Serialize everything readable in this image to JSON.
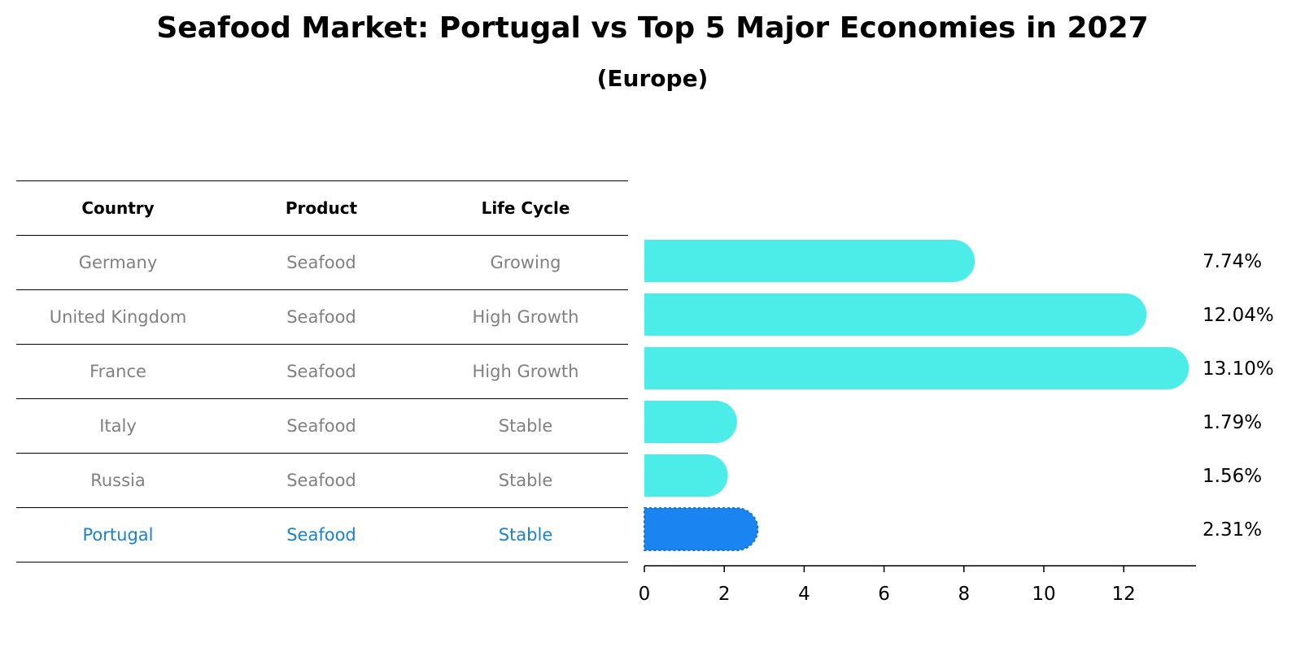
{
  "title": "Seafood Market: Portugal vs Top 5 Major Economies in 2027",
  "subtitle": "(Europe)",
  "table": {
    "headers": [
      "Country",
      "Product",
      "Life Cycle"
    ],
    "rows": [
      [
        "Germany",
        "Seafood",
        "Growing"
      ],
      [
        "United Kingdom",
        "Seafood",
        "High Growth"
      ],
      [
        "France",
        "Seafood",
        "High Growth"
      ],
      [
        "Italy",
        "Seafood",
        "Stable"
      ],
      [
        "Russia",
        "Seafood",
        "Stable"
      ],
      [
        "Portugal",
        "Seafood",
        "Stable"
      ]
    ]
  },
  "colors": {
    "bar": "#4cede8",
    "highlight": "#1a85f0",
    "highlight_text": "#1a80d0",
    "muted_text": "#808080"
  },
  "chart_data": {
    "type": "bar",
    "orientation": "horizontal",
    "categories": [
      "Germany",
      "United Kingdom",
      "France",
      "Italy",
      "Russia",
      "Portugal"
    ],
    "values": [
      7.74,
      12.04,
      13.1,
      1.79,
      1.56,
      2.31
    ],
    "value_labels": [
      "7.74%",
      "12.04%",
      "13.10%",
      "1.79%",
      "1.56%",
      "2.31%"
    ],
    "highlight": "Portugal",
    "xticks": [
      0,
      2,
      4,
      6,
      8,
      10,
      12
    ],
    "xlim": [
      0,
      13.8
    ],
    "title": "Seafood Market: Portugal vs Top 5 Major Economies in 2027",
    "xlabel": "",
    "ylabel": ""
  }
}
